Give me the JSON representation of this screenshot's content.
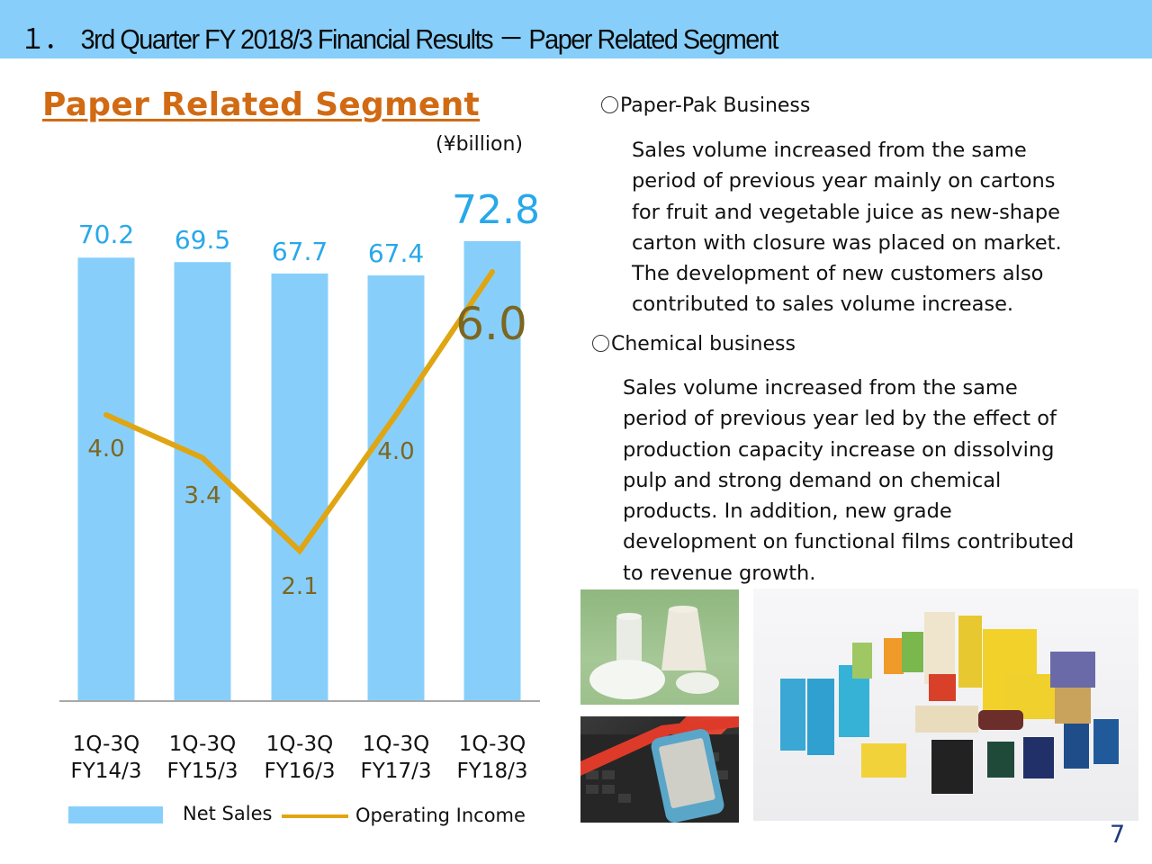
{
  "header": {
    "title": "１．　3rd Quarter FY 2018/3 Financial Results － Paper Related Segment"
  },
  "segment_title": "Paper Related Segment",
  "unit": "(¥billion)",
  "colors": {
    "header_bg": "#87cffa",
    "bar": "#87cffa",
    "bar_label": "#29a8ea",
    "line": "#e0a512",
    "line_label": "#7c6620",
    "segment_title": "#d16a12",
    "page_number": "#1d3a7a"
  },
  "chart_data": {
    "type": "bar",
    "title": "Paper Related Segment",
    "ylabel": "¥billion",
    "categories": [
      "1Q-3Q FY14/3",
      "1Q-3Q FY15/3",
      "1Q-3Q FY16/3",
      "1Q-3Q FY17/3",
      "1Q-3Q FY18/3"
    ],
    "category_lines": [
      [
        "1Q-3Q",
        "FY14/3"
      ],
      [
        "1Q-3Q",
        "FY15/3"
      ],
      [
        "1Q-3Q",
        "FY16/3"
      ],
      [
        "1Q-3Q",
        "FY17/3"
      ],
      [
        "1Q-3Q",
        "FY18/3"
      ]
    ],
    "series": [
      {
        "name": "Net Sales",
        "type": "bar",
        "values": [
          70.2,
          69.5,
          67.7,
          67.4,
          72.8
        ],
        "labels": [
          "70.2",
          "69.5",
          "67.7",
          "67.4",
          "72.8"
        ]
      },
      {
        "name": "Operating Income",
        "type": "line",
        "values": [
          4.0,
          3.4,
          2.1,
          4.0,
          6.0
        ],
        "labels": [
          "4.0",
          "3.4",
          "2.1",
          "4.0",
          "6.0"
        ]
      }
    ],
    "legend": [
      "Net Sales",
      "Operating Income"
    ],
    "legend_position": "bottom",
    "grid": false,
    "highlight_last": true
  },
  "right": {
    "sections": [
      {
        "heading": "Paper-Pak Business",
        "lines": [
          "Sales volume increased from the same",
          "period of previous year mainly on cartons",
          "for fruit and vegetable juice as new-shape",
          "carton with closure was placed on market.",
          "The development of new customers also",
          "contributed to sales volume increase."
        ]
      },
      {
        "heading": "Chemical business",
        "lines": [
          "Sales volume increased from the same",
          "period of previous year led by the effect of",
          "production capacity increase on dissolving",
          "pulp and strong demand on chemical",
          "products. In addition, new grade",
          "development on functional films contributed",
          "to revenue growth."
        ]
      }
    ]
  },
  "page_number": "7"
}
